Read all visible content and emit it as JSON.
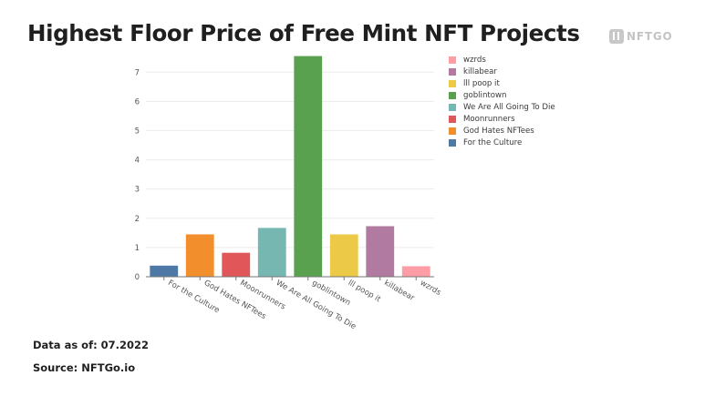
{
  "header": {
    "title": "Highest Floor Price of Free Mint NFT Projects",
    "brand": "NFTGO"
  },
  "footer": {
    "date_line": "Data as of: 07.2022",
    "source_line": "Source: NFTGo.io"
  },
  "colors": {
    "gridline": "#ececec",
    "axis": "#777777"
  },
  "chart_data": {
    "type": "bar",
    "title": "Highest Floor Price of Free Mint NFT Projects",
    "xlabel": "",
    "ylabel": "",
    "ylim": [
      0,
      7.6
    ],
    "yticks": [
      0,
      1,
      2,
      3,
      4,
      5,
      6,
      7
    ],
    "grid": true,
    "legend_position": "right",
    "categories": [
      "For the Culture",
      "God Hates NFTees",
      "Moonrunners",
      "We Are All Going To Die",
      "goblintown",
      "lll poop it",
      "killabear",
      "wzrds"
    ],
    "values": [
      0.38,
      1.45,
      0.82,
      1.67,
      7.55,
      1.45,
      1.73,
      0.36
    ],
    "bar_colors": [
      "#4e79a7",
      "#f28e2b",
      "#e15759",
      "#76b7b2",
      "#59a14f",
      "#edc948",
      "#b07aa1",
      "#ff9da7"
    ],
    "legend": [
      {
        "label": "wzrds",
        "color": "#ff9da7"
      },
      {
        "label": "killabear",
        "color": "#b07aa1"
      },
      {
        "label": "lll poop it",
        "color": "#edc948"
      },
      {
        "label": "goblintown",
        "color": "#59a14f"
      },
      {
        "label": "We Are All Going To Die",
        "color": "#76b7b2"
      },
      {
        "label": "Moonrunners",
        "color": "#e15759"
      },
      {
        "label": "God Hates NFTees",
        "color": "#f28e2b"
      },
      {
        "label": "For the Culture",
        "color": "#4e79a7"
      }
    ]
  }
}
